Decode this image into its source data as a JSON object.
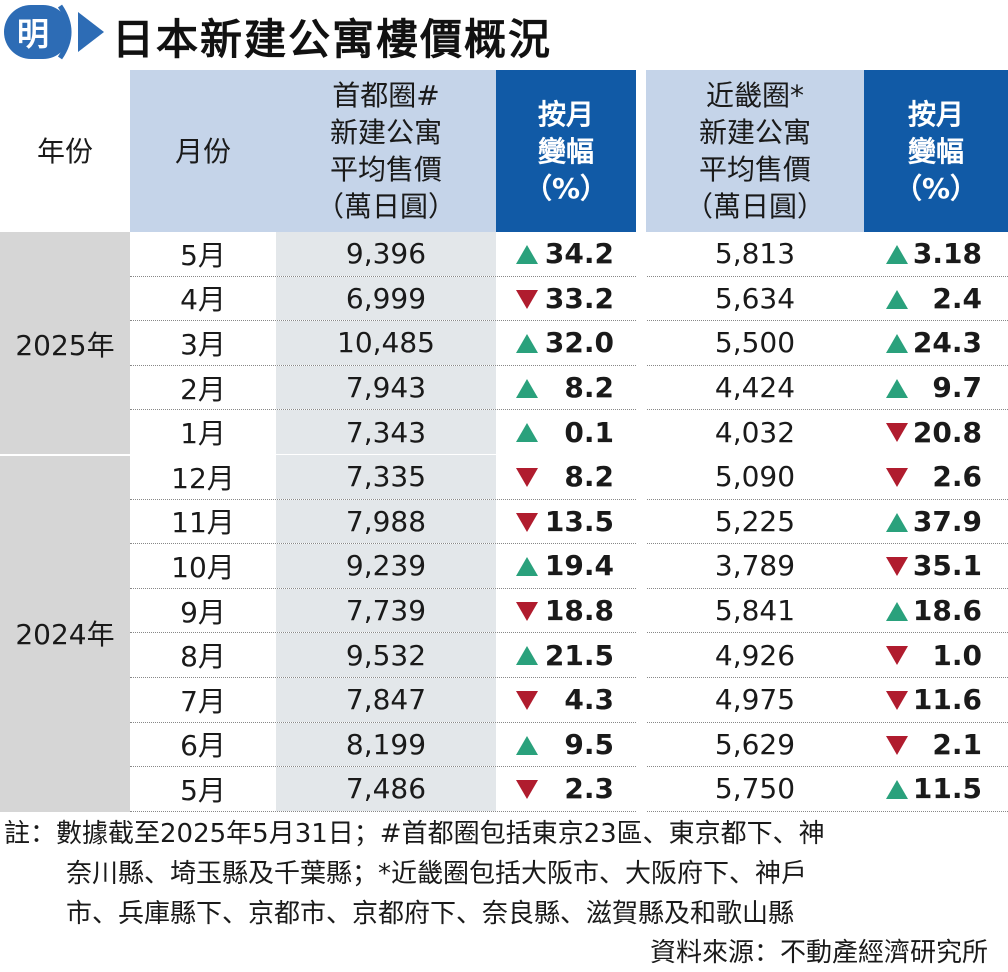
{
  "logo": {
    "char": "明",
    "color": "#2d6cb5"
  },
  "title": "日本新建公寓樓價概況",
  "chart_data": {
    "type": "table",
    "title": "日本新建公寓樓價概況",
    "header": {
      "year": "年份",
      "month": "月份",
      "tokyo_price": [
        "首都圈#",
        "新建公寓",
        "平均售價",
        "（萬日圓）"
      ],
      "tokyo_change": [
        "按月",
        "變幅",
        "（%）"
      ],
      "kinki_price": [
        "近畿圈*",
        "新建公寓",
        "平均售價",
        "（萬日圓）"
      ],
      "kinki_change": [
        "按月",
        "變幅",
        "（%）"
      ]
    },
    "groups": [
      {
        "year": "2025年",
        "rows": [
          {
            "month": "5月",
            "tokyo_price": "9,396",
            "tokyo_dir": "up",
            "tokyo_change": "34.2",
            "kinki_price": "5,813",
            "kinki_dir": "up",
            "kinki_change": "3.18"
          },
          {
            "month": "4月",
            "tokyo_price": "6,999",
            "tokyo_dir": "down",
            "tokyo_change": "33.2",
            "kinki_price": "5,634",
            "kinki_dir": "up",
            "kinki_change": "2.4"
          },
          {
            "month": "3月",
            "tokyo_price": "10,485",
            "tokyo_dir": "up",
            "tokyo_change": "32.0",
            "kinki_price": "5,500",
            "kinki_dir": "up",
            "kinki_change": "24.3"
          },
          {
            "month": "2月",
            "tokyo_price": "7,943",
            "tokyo_dir": "up",
            "tokyo_change": "8.2",
            "kinki_price": "4,424",
            "kinki_dir": "up",
            "kinki_change": "9.7"
          },
          {
            "month": "1月",
            "tokyo_price": "7,343",
            "tokyo_dir": "up",
            "tokyo_change": "0.1",
            "kinki_price": "4,032",
            "kinki_dir": "down",
            "kinki_change": "20.8"
          }
        ]
      },
      {
        "year": "2024年",
        "rows": [
          {
            "month": "12月",
            "tokyo_price": "7,335",
            "tokyo_dir": "down",
            "tokyo_change": "8.2",
            "kinki_price": "5,090",
            "kinki_dir": "down",
            "kinki_change": "2.6"
          },
          {
            "month": "11月",
            "tokyo_price": "7,988",
            "tokyo_dir": "down",
            "tokyo_change": "13.5",
            "kinki_price": "5,225",
            "kinki_dir": "up",
            "kinki_change": "37.9"
          },
          {
            "month": "10月",
            "tokyo_price": "9,239",
            "tokyo_dir": "up",
            "tokyo_change": "19.4",
            "kinki_price": "3,789",
            "kinki_dir": "down",
            "kinki_change": "35.1"
          },
          {
            "month": "9月",
            "tokyo_price": "7,739",
            "tokyo_dir": "down",
            "tokyo_change": "18.8",
            "kinki_price": "5,841",
            "kinki_dir": "up",
            "kinki_change": "18.6"
          },
          {
            "month": "8月",
            "tokyo_price": "9,532",
            "tokyo_dir": "up",
            "tokyo_change": "21.5",
            "kinki_price": "4,926",
            "kinki_dir": "down",
            "kinki_change": "1.0"
          },
          {
            "month": "7月",
            "tokyo_price": "7,847",
            "tokyo_dir": "down",
            "tokyo_change": "4.3",
            "kinki_price": "4,975",
            "kinki_dir": "down",
            "kinki_change": "11.6"
          },
          {
            "month": "6月",
            "tokyo_price": "8,199",
            "tokyo_dir": "up",
            "tokyo_change": "9.5",
            "kinki_price": "5,629",
            "kinki_dir": "down",
            "kinki_change": "2.1"
          },
          {
            "month": "5月",
            "tokyo_price": "7,486",
            "tokyo_dir": "down",
            "tokyo_change": "2.3",
            "kinki_price": "5,750",
            "kinki_dir": "up",
            "kinki_change": "11.5"
          }
        ]
      }
    ]
  },
  "colors": {
    "up": "#2aa17c",
    "down": "#b01c2e",
    "header_dark": "#115aa6",
    "header_light": "#c5d4e9",
    "year_bg": "#d6d6d6",
    "price_bg": "#e3e7ea"
  },
  "note": {
    "lines": [
      "註：數據截至2025年5月31日；#首都圈包括東京23區、東京都下、神",
      "奈川縣、埼玉縣及千葉縣；*近畿圈包括大阪市、大阪府下、神戶",
      "市、兵庫縣下、京都市、京都府下、奈良縣、滋賀縣及和歌山縣"
    ],
    "source": "資料來源：不動產經濟研究所"
  }
}
